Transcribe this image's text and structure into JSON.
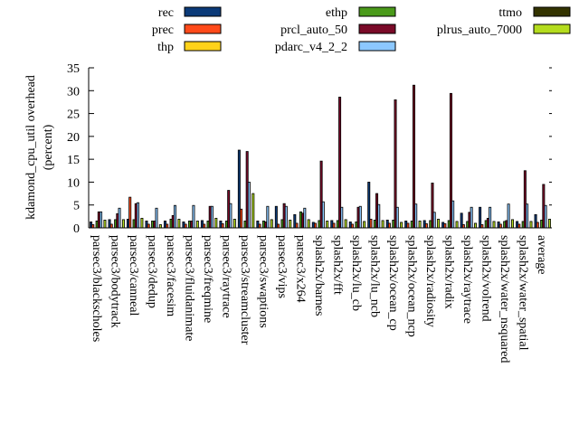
{
  "chart_data": {
    "type": "bar",
    "ylabel": "kdamond_cpu_util overhead\n(percent)",
    "ylim": [
      0,
      35
    ],
    "yticks": [
      0,
      5,
      10,
      15,
      20,
      25,
      30,
      35
    ],
    "legend_position": "top",
    "grid": false,
    "categories": [
      "parsec3/blackscholes",
      "parsec3/bodytrack",
      "parsec3/canneal",
      "parsec3/dedup",
      "parsec3/facesim",
      "parsec3/fluidanimate",
      "parsec3/freqmine",
      "parsec3/raytrace",
      "parsec3/streamcluster",
      "parsec3/swaptions",
      "parsec3/vips",
      "parsec3/x264",
      "splash2x/barnes",
      "splash2x/fft",
      "splash2x/lu_cb",
      "splash2x/lu_ncb",
      "splash2x/ocean_cp",
      "splash2x/ocean_ncp",
      "splash2x/radiosity",
      "splash2x/radix",
      "splash2x/raytrace",
      "splash2x/volrend",
      "splash2x/water_nsquared",
      "splash2x/water_spatial",
      "average"
    ],
    "series": [
      {
        "name": "rec",
        "color": "#0b3a78",
        "values": [
          1.3,
          1.8,
          1.9,
          1.5,
          1.5,
          1.3,
          1.6,
          1.5,
          17.0,
          1.5,
          4.7,
          2.9,
          1.2,
          1.6,
          1.3,
          10.0,
          1.7,
          1.5,
          1.6,
          1.2,
          3.2,
          4.5,
          1.3,
          1.4,
          2.9
        ]
      },
      {
        "name": "prec",
        "color": "#ff4a1a",
        "values": [
          0.7,
          0.8,
          6.7,
          0.8,
          0.8,
          0.8,
          0.8,
          0.9,
          4.1,
          0.8,
          0.8,
          1.0,
          1.0,
          1.0,
          0.8,
          1.9,
          1.0,
          1.0,
          0.9,
          0.9,
          0.7,
          0.7,
          0.8,
          0.8,
          1.2
        ]
      },
      {
        "name": "thp",
        "color": "#ffd21a",
        "values": [
          0,
          0,
          0,
          0,
          0,
          0,
          0,
          0,
          0,
          0,
          0,
          0,
          0,
          0,
          0,
          0,
          0,
          0,
          0,
          0,
          0,
          0,
          0,
          0,
          0
        ]
      },
      {
        "name": "ethp",
        "color": "#4a9a1a",
        "values": [
          1.5,
          1.8,
          1.8,
          1.5,
          1.9,
          1.5,
          1.5,
          1.5,
          1.5,
          1.5,
          1.8,
          3.5,
          1.6,
          1.6,
          1.3,
          1.7,
          1.7,
          1.5,
          1.6,
          1.6,
          1.4,
          1.6,
          1.4,
          1.4,
          1.7
        ]
      },
      {
        "name": "prcl_auto_50",
        "color": "#7a0a28",
        "values": [
          3.5,
          3.1,
          5.3,
          1.5,
          2.7,
          1.5,
          4.7,
          8.2,
          16.7,
          1.3,
          5.3,
          3.2,
          14.6,
          28.6,
          4.5,
          7.5,
          28.0,
          31.2,
          9.8,
          29.4,
          3.4,
          2.1,
          1.6,
          12.5,
          9.5
        ]
      },
      {
        "name": "pdarc_v4_2_2",
        "color": "#8cc8ff",
        "values": [
          3.5,
          4.3,
          5.5,
          4.3,
          4.9,
          4.9,
          4.7,
          5.3,
          10.0,
          4.7,
          4.7,
          4.3,
          5.7,
          4.5,
          4.7,
          5.1,
          4.5,
          5.2,
          3.4,
          5.9,
          4.5,
          4.5,
          5.2,
          5.2,
          4.9
        ]
      },
      {
        "name": "ttmo",
        "color": "#333300",
        "values": [
          0,
          0,
          0,
          0,
          0,
          0,
          0,
          0,
          0,
          0,
          0,
          0,
          0,
          0,
          0,
          0,
          0,
          0,
          0,
          0,
          0,
          0,
          0,
          0,
          0
        ]
      },
      {
        "name": "plrus_auto_7000",
        "color": "#b4dc1e",
        "values": [
          1.7,
          1.8,
          2.1,
          0.7,
          1.9,
          1.5,
          2.1,
          1.9,
          7.5,
          1.8,
          1.7,
          1.8,
          1.5,
          1.8,
          1.4,
          1.6,
          1.2,
          1.5,
          1.9,
          1.4,
          1.0,
          1.4,
          1.8,
          1.4,
          1.9
        ]
      }
    ]
  }
}
